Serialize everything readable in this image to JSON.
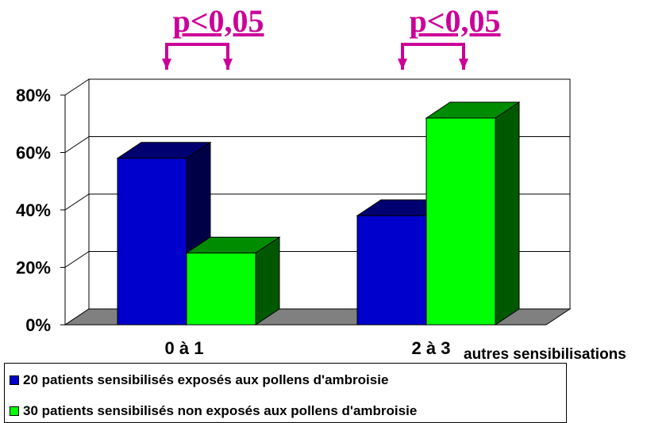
{
  "chart_data": {
    "type": "bar",
    "categories": [
      "0 à 1",
      "2 à 3"
    ],
    "xlabel": "autres sensibilisations",
    "ylabel": "",
    "ylim": [
      0,
      80
    ],
    "yticks": [
      "0%",
      "20%",
      "40%",
      "60%",
      "80%"
    ],
    "ytick_values": [
      0,
      20,
      40,
      60,
      80
    ],
    "grid": true,
    "legend_position": "bottom",
    "series": [
      {
        "name": "20 patients sensibilisés exposés aux pollens d'ambroisie",
        "values": [
          58,
          38
        ],
        "color": "#0000cc"
      },
      {
        "name": "30 patients sensibilisés non exposés aux pollens d'ambroisie",
        "values": [
          25,
          72
        ],
        "color": "#00ff00"
      }
    ],
    "annotations": [
      {
        "text": "p<0,05",
        "category": "0 à 1",
        "color": "#cc0099"
      },
      {
        "text": "p<0,05",
        "category": "2 à 3",
        "color": "#cc0099"
      }
    ]
  }
}
